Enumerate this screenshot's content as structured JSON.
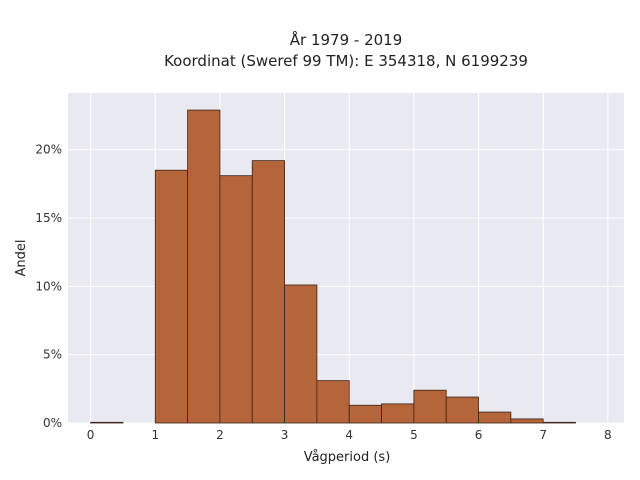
{
  "chart_data": {
    "type": "bar",
    "title_line1": "År 1979 - 2019",
    "title_line2": "Koordinat (Sweref 99 TM): E 354318, N 6199239",
    "xlabel": "Vågperiod (s)",
    "ylabel": "Andel",
    "bin_width": 0.5,
    "bins": [
      {
        "x0": 0.0,
        "value": 0.0005
      },
      {
        "x0": 0.5,
        "value": 0.0
      },
      {
        "x0": 1.0,
        "value": 0.185
      },
      {
        "x0": 1.5,
        "value": 0.229
      },
      {
        "x0": 2.0,
        "value": 0.181
      },
      {
        "x0": 2.5,
        "value": 0.192
      },
      {
        "x0": 3.0,
        "value": 0.101
      },
      {
        "x0": 3.5,
        "value": 0.031
      },
      {
        "x0": 4.0,
        "value": 0.013
      },
      {
        "x0": 4.5,
        "value": 0.014
      },
      {
        "x0": 5.0,
        "value": 0.024
      },
      {
        "x0": 5.5,
        "value": 0.019
      },
      {
        "x0": 6.0,
        "value": 0.008
      },
      {
        "x0": 6.5,
        "value": 0.003
      },
      {
        "x0": 7.0,
        "value": 0.0005
      },
      {
        "x0": 7.5,
        "value": 0.0
      }
    ],
    "xlim": [
      -0.35,
      8.25
    ],
    "ylim": [
      0,
      0.2415
    ],
    "x_ticks": [
      0,
      1,
      2,
      3,
      4,
      5,
      6,
      7,
      8
    ],
    "y_ticks": [
      0,
      0.05,
      0.1,
      0.15,
      0.2
    ],
    "y_tick_labels": [
      "0%",
      "5%",
      "10%",
      "15%",
      "20%"
    ],
    "grid": true,
    "colors": {
      "bar_fill": "#b5653a",
      "bar_stroke": "#3d2416",
      "plot_background": "#e9e9f1",
      "grid": "#ffffff"
    }
  }
}
